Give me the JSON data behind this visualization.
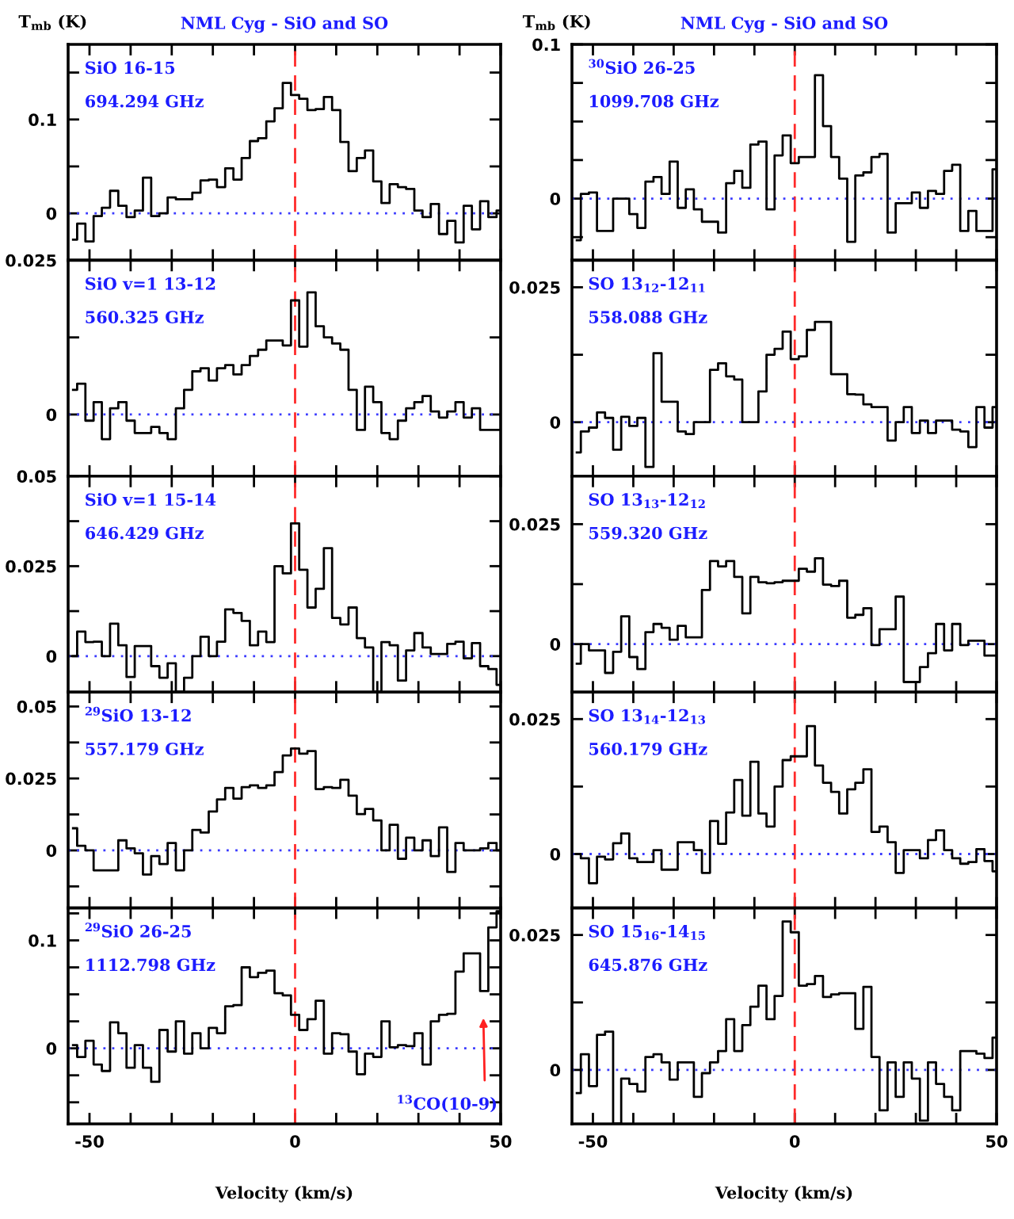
{
  "chart_data": [
    {
      "type": "step",
      "title": "NML Cyg - SiO and SO",
      "ylabel": "T$_{mb}$ (K)",
      "annotations": [
        "SiO 16-15",
        "694.294 GHz"
      ],
      "color": "#000000",
      "x": [
        -54,
        -52,
        -50,
        -48,
        -46,
        -44,
        -42,
        -40,
        -38,
        -36,
        -34,
        -32,
        -30,
        -28,
        -26,
        -24,
        -22,
        -20,
        -18,
        -16,
        -14,
        -12,
        -10,
        -8,
        -6,
        -4,
        -2,
        0,
        2,
        4,
        6,
        8,
        10,
        12,
        14,
        16,
        18,
        20,
        22,
        24,
        26,
        28,
        30,
        32,
        34,
        36,
        38,
        40,
        42,
        44,
        46,
        48,
        50
      ],
      "values": [
        -0.028,
        -0.011,
        -0.03,
        -0.003,
        0.006,
        0.024,
        0.008,
        -0.004,
        0.003,
        0.038,
        -0.003,
        0,
        0.017,
        0.015,
        0.015,
        0.022,
        0.035,
        0.036,
        0.028,
        0.048,
        0.036,
        0.059,
        0.077,
        0.08,
        0.098,
        0.112,
        0.139,
        0.126,
        0.122,
        0.11,
        0.111,
        0.124,
        0.11,
        0.076,
        0.045,
        0.059,
        0.067,
        0.034,
        0.011,
        0.031,
        0.028,
        0.026,
        0.003,
        -0.004,
        0.01,
        -0.022,
        -0.008,
        -0.031,
        0.008,
        -0.017,
        0.013,
        -0.004,
        0.003
      ],
      "xlim": [
        -55.2,
        50
      ],
      "xticks": [
        -50,
        {
          "value": -40,
          "label": null
        },
        {
          "value": -30,
          "label": null
        },
        {
          "value": -20,
          "label": null
        },
        {
          "value": -10,
          "label": null
        },
        0,
        {
          "value": 10,
          "label": null
        },
        {
          "value": 20,
          "label": null
        },
        {
          "value": 30,
          "label": null
        },
        {
          "value": 40,
          "label": null
        },
        50
      ],
      "ylim": [
        -0.05,
        0.18
      ],
      "yticks": [
        0,
        {
          "value": 0.05,
          "label": null
        },
        0.1,
        {
          "value": 0.15,
          "label": null
        }
      ],
      "ref_lines": [
        {
          "axis": "x",
          "value": 0,
          "color": "#ff2a2a",
          "line_style": "dashed"
        },
        {
          "axis": "y",
          "value": 0,
          "color": "#3a3aff",
          "line_style": "dotted"
        }
      ],
      "tick_labels": "y"
    },
    {
      "type": "step",
      "annotations": [
        "SiO v=1 13-12",
        "560.325 GHz"
      ],
      "color": "#000000",
      "x": [
        -54,
        -52,
        -50,
        -48,
        -46,
        -44,
        -42,
        -40,
        -38,
        -36,
        -34,
        -32,
        -30,
        -28,
        -26,
        -24,
        -22,
        -20,
        -18,
        -16,
        -14,
        -12,
        -10,
        -8,
        -6,
        -4,
        -2,
        0,
        2,
        4,
        6,
        8,
        10,
        12,
        14,
        16,
        18,
        20,
        22,
        24,
        26,
        28,
        30,
        32,
        34,
        36,
        38,
        40,
        42,
        44,
        46,
        48,
        50
      ],
      "values": [
        0.004,
        0.005,
        -0.001,
        0.002,
        -0.004,
        0.001,
        0.002,
        -0.001,
        -0.003,
        -0.003,
        -0.002,
        -0.003,
        -0.004,
        0.001,
        0.004,
        0.007,
        0.0075,
        0.0055,
        0.0075,
        0.008,
        0.0065,
        0.008,
        0.0095,
        0.0105,
        0.012,
        0.012,
        0.0112,
        0.0185,
        0.011,
        0.0198,
        0.0143,
        0.0125,
        0.0115,
        0.0105,
        0.004,
        -0.0025,
        0.0045,
        0.002,
        -0.003,
        -0.004,
        -0.001,
        0.001,
        0.002,
        0.003,
        0.0005,
        -0.0005,
        0.0005,
        0.002,
        -0.0005,
        0.001,
        -0.0025,
        -0.0025,
        -0.0025
      ],
      "xlim": [
        -55.2,
        50
      ],
      "xticks": [
        -50,
        {
          "value": -40,
          "label": null
        },
        {
          "value": -30,
          "label": null
        },
        {
          "value": -20,
          "label": null
        },
        {
          "value": -10,
          "label": null
        },
        0,
        {
          "value": 10,
          "label": null
        },
        {
          "value": 20,
          "label": null
        },
        {
          "value": 30,
          "label": null
        },
        {
          "value": 40,
          "label": null
        },
        50
      ],
      "ylim": [
        -0.01,
        0.025
      ],
      "yticks": [
        0,
        {
          "value": 0.0125,
          "label": null
        },
        0.025
      ],
      "ref_lines": [
        {
          "axis": "x",
          "value": 0,
          "color": "#ff2a2a",
          "line_style": "dashed"
        },
        {
          "axis": "y",
          "value": 0,
          "color": "#3a3aff",
          "line_style": "dotted"
        }
      ],
      "tick_labels": "y"
    },
    {
      "type": "step",
      "annotations": [
        "SiO v=1 15-14",
        "646.429 GHz"
      ],
      "color": "#000000",
      "x": [
        -54,
        -52,
        -50,
        -48,
        -46,
        -44,
        -42,
        -40,
        -38,
        -36,
        -34,
        -32,
        -30,
        -28,
        -26,
        -24,
        -22,
        -20,
        -18,
        -16,
        -14,
        -12,
        -10,
        -8,
        -6,
        -4,
        -2,
        0,
        2,
        4,
        6,
        8,
        10,
        12,
        14,
        16,
        18,
        20,
        22,
        24,
        26,
        28,
        30,
        32,
        34,
        36,
        38,
        40,
        42,
        44,
        46,
        48,
        50
      ],
      "values": [
        0,
        0.0068,
        0.0039,
        0.004,
        0,
        0.009,
        0.003,
        -0.0058,
        0.0028,
        0.0028,
        -0.0028,
        -0.006,
        -0.002,
        -0.0099,
        -0.006,
        0,
        0.0054,
        0,
        0.004,
        0.013,
        0.012,
        0.0098,
        0.003,
        0.0068,
        0.0039,
        0.025,
        0.023,
        0.0369,
        0.024,
        0.0135,
        0.0187,
        0.03,
        0.0106,
        0.0088,
        0.0135,
        0.005,
        0.0024,
        -0.0099,
        0.0039,
        0.003,
        -0.0068,
        0.0016,
        0.0064,
        0.0024,
        0.0006,
        0.0006,
        0.0034,
        0.004,
        -0.0006,
        0.0036,
        -0.0028,
        -0.0036,
        -0.008
      ],
      "xlim": [
        -55.2,
        50
      ],
      "xticks": [
        -50,
        {
          "value": -40,
          "label": null
        },
        {
          "value": -30,
          "label": null
        },
        {
          "value": -20,
          "label": null
        },
        {
          "value": -10,
          "label": null
        },
        0,
        {
          "value": 10,
          "label": null
        },
        {
          "value": 20,
          "label": null
        },
        {
          "value": 30,
          "label": null
        },
        {
          "value": 40,
          "label": null
        },
        50
      ],
      "ylim": [
        -0.01,
        0.05
      ],
      "yticks": [
        0,
        {
          "value": 0.0125,
          "label": null
        },
        0.025,
        {
          "value": 0.0375,
          "label": null
        },
        0.05
      ],
      "ref_lines": [
        {
          "axis": "x",
          "value": 0,
          "color": "#ff2a2a",
          "line_style": "dashed"
        },
        {
          "axis": "y",
          "value": 0,
          "color": "#3a3aff",
          "line_style": "dotted"
        }
      ],
      "tick_labels": "y"
    },
    {
      "type": "step",
      "annotations": [
        "$^{29}$SiO 13-12",
        "557.179 GHz"
      ],
      "color": "#000000",
      "x": [
        -54,
        -52,
        -50,
        -48,
        -46,
        -44,
        -42,
        -40,
        -38,
        -36,
        -34,
        -32,
        -30,
        -28,
        -26,
        -24,
        -22,
        -20,
        -18,
        -16,
        -14,
        -12,
        -10,
        -8,
        -6,
        -4,
        -2,
        0,
        2,
        4,
        6,
        8,
        10,
        12,
        14,
        16,
        18,
        20,
        22,
        24,
        26,
        28,
        30,
        32,
        34,
        36,
        38,
        40,
        42,
        44,
        46,
        48,
        50
      ],
      "values": [
        0.0077,
        0.0016,
        0,
        -0.0069,
        -0.0069,
        -0.0069,
        0.0035,
        0.0007,
        -0.001,
        -0.0084,
        -0.002,
        -0.0047,
        0.0026,
        -0.0069,
        0,
        0.0071,
        0.0062,
        0.0135,
        0.0177,
        0.0217,
        0.018,
        0.022,
        0.0226,
        0.0217,
        0.0226,
        0.0272,
        0.033,
        0.0354,
        0.0336,
        0.0345,
        0.0213,
        0.022,
        0.0217,
        0.0245,
        0.019,
        0.0126,
        0.0144,
        0.0104,
        0,
        0.0089,
        -0.0029,
        0.0044,
        0,
        0.0035,
        -0.002,
        0.008,
        -0.0075,
        0.0026,
        0,
        0,
        0.0007,
        0.0026,
        0
      ],
      "xlim": [
        -55.2,
        50
      ],
      "xticks": [
        -50,
        {
          "value": -40,
          "label": null
        },
        {
          "value": -30,
          "label": null
        },
        {
          "value": -20,
          "label": null
        },
        {
          "value": -10,
          "label": null
        },
        0,
        {
          "value": 10,
          "label": null
        },
        {
          "value": 20,
          "label": null
        },
        {
          "value": 30,
          "label": null
        },
        {
          "value": 40,
          "label": null
        },
        50
      ],
      "ylim": [
        -0.02,
        0.055
      ],
      "yticks": [
        {
          "value": -0.0125,
          "label": null
        },
        0,
        {
          "value": 0.0125,
          "label": null
        },
        0.025,
        {
          "value": 0.0375,
          "label": null
        },
        0.05
      ],
      "ref_lines": [
        {
          "axis": "x",
          "value": 0,
          "color": "#ff2a2a",
          "line_style": "dashed"
        },
        {
          "axis": "y",
          "value": 0,
          "color": "#3a3aff",
          "line_style": "dotted"
        }
      ],
      "tick_labels": "y"
    },
    {
      "type": "step",
      "xlabel": "Velocity (km/s)",
      "annotations": [
        "$^{29}$SiO 26-25",
        "1112.798 GHz",
        "$^{13}$CO(10-9)"
      ],
      "color": "#000000",
      "x": [
        -54,
        -52,
        -50,
        -48,
        -46,
        -44,
        -42,
        -40,
        -38,
        -36,
        -34,
        -32,
        -30,
        -28,
        -26,
        -24,
        -22,
        -20,
        -18,
        -16,
        -14,
        -12,
        -10,
        -8,
        -6,
        -4,
        -2,
        0,
        2,
        4,
        6,
        8,
        10,
        12,
        14,
        16,
        18,
        20,
        22,
        24,
        26,
        28,
        30,
        32,
        34,
        36,
        38,
        40,
        42,
        44,
        46,
        48,
        50
      ],
      "values": [
        0.003,
        -0.008,
        0.007,
        -0.015,
        -0.021,
        0.024,
        0.014,
        -0.018,
        0.003,
        -0.018,
        -0.031,
        0.017,
        -0.003,
        0.025,
        -0.005,
        0.014,
        0,
        0.019,
        0.014,
        0.039,
        0.04,
        0.075,
        0.066,
        0.07,
        0.072,
        0.051,
        0.049,
        0.031,
        0.017,
        0.027,
        0.044,
        -0.005,
        0.014,
        0.013,
        -0.003,
        -0.024,
        -0.005,
        -0.008,
        0.025,
        0.001,
        0.003,
        0.002,
        0.014,
        -0.015,
        0.025,
        0.031,
        0.032,
        0.071,
        0.088,
        0.088,
        0.053,
        0.112,
        0.127
      ],
      "xlim": [
        -55.2,
        50
      ],
      "xticks": [
        -50,
        {
          "value": -40,
          "label": null
        },
        {
          "value": -30,
          "label": null
        },
        {
          "value": -20,
          "label": null
        },
        {
          "value": -10,
          "label": null
        },
        0,
        {
          "value": 10,
          "label": null
        },
        {
          "value": 20,
          "label": null
        },
        {
          "value": 30,
          "label": null
        },
        {
          "value": 40,
          "label": null
        },
        50
      ],
      "ylim": [
        -0.07,
        0.13
      ],
      "yticks": [
        {
          "value": -0.05,
          "label": null
        },
        {
          "value": -0.025,
          "label": null
        },
        0,
        {
          "value": 0.025,
          "label": null
        },
        {
          "value": 0.05,
          "label": null
        },
        {
          "value": 0.075,
          "label": null
        },
        0.1,
        {
          "value": 0.125,
          "label": null
        }
      ],
      "ref_lines": [
        {
          "axis": "x",
          "value": 0,
          "color": "#ff2a2a",
          "line_style": "dashed"
        },
        {
          "axis": "y",
          "value": 0,
          "color": "#3a3aff",
          "line_style": "dotted"
        }
      ]
    },
    {
      "type": "step",
      "title": "NML Cyg - SiO and SO",
      "ylabel": "T$_{mb}$ (K)",
      "annotations": [
        "$^{30}$SiO 26-25",
        "1099.708 GHz"
      ],
      "color": "#000000",
      "x": [
        -54,
        -52,
        -50,
        -48,
        -46,
        -44,
        -42,
        -40,
        -38,
        -36,
        -34,
        -32,
        -30,
        -28,
        -26,
        -24,
        -22,
        -20,
        -18,
        -16,
        -14,
        -12,
        -10,
        -8,
        -6,
        -4,
        -2,
        0,
        2,
        4,
        6,
        8,
        10,
        12,
        14,
        16,
        18,
        20,
        22,
        24,
        26,
        28,
        30,
        32,
        34,
        36,
        38,
        40,
        42,
        44,
        46,
        48,
        50
      ],
      "values": [
        -0.027,
        0.003,
        0.004,
        -0.021,
        -0.021,
        0,
        0,
        -0.01,
        -0.019,
        0.011,
        0.014,
        0.003,
        0.024,
        -0.006,
        0.006,
        -0.007,
        -0.015,
        -0.015,
        -0.022,
        0.01,
        0.018,
        0.007,
        0.035,
        0.037,
        -0.007,
        0.028,
        0.041,
        0.023,
        0.027,
        0.027,
        0.08,
        0.047,
        0.027,
        0.013,
        -0.028,
        0.015,
        0.017,
        0.027,
        0.029,
        -0.022,
        -0.003,
        -0.003,
        0.004,
        -0.006,
        0.005,
        0.003,
        0.018,
        0.022,
        -0.021,
        -0.008,
        -0.021,
        -0.021,
        0.019
      ],
      "xlim": [
        -55.2,
        50
      ],
      "xticks": [
        -50,
        {
          "value": -40,
          "label": null
        },
        {
          "value": -30,
          "label": null
        },
        {
          "value": -20,
          "label": null
        },
        {
          "value": -10,
          "label": null
        },
        0,
        {
          "value": 10,
          "label": null
        },
        {
          "value": 20,
          "label": null
        },
        {
          "value": 30,
          "label": null
        },
        {
          "value": 40,
          "label": null
        },
        50
      ],
      "ylim": [
        -0.04,
        0.1
      ],
      "yticks": [
        {
          "value": -0.025,
          "label": null
        },
        0,
        {
          "value": 0.025,
          "label": null
        },
        {
          "value": 0.05,
          "label": null
        },
        {
          "value": 0.075,
          "label": null
        },
        0.1
      ],
      "ref_lines": [
        {
          "axis": "x",
          "value": 0,
          "color": "#ff2a2a",
          "line_style": "dashed"
        },
        {
          "axis": "y",
          "value": 0,
          "color": "#3a3aff",
          "line_style": "dotted"
        }
      ],
      "tick_labels": "y"
    },
    {
      "type": "step",
      "annotations": [
        "SO 13$_{12}$-12$_{11}$",
        "558.088 GHz"
      ],
      "color": "#000000",
      "x": [
        -54,
        -52,
        -50,
        -48,
        -46,
        -44,
        -42,
        -40,
        -38,
        -36,
        -34,
        -32,
        -30,
        -28,
        -26,
        -24,
        -22,
        -20,
        -18,
        -16,
        -14,
        -12,
        -10,
        -8,
        -6,
        -4,
        -2,
        0,
        2,
        4,
        6,
        8,
        10,
        12,
        14,
        16,
        18,
        20,
        22,
        24,
        26,
        28,
        30,
        32,
        34,
        36,
        38,
        40,
        42,
        44,
        46,
        48,
        50
      ],
      "values": [
        -0.0056,
        -0.0017,
        -0.001,
        0.0018,
        0.0008,
        -0.0051,
        0.001,
        -0.0007,
        0.0008,
        -0.0083,
        0.0128,
        0.0038,
        0.0038,
        -0.0017,
        -0.0022,
        0,
        0,
        0.0097,
        0.0109,
        0.0085,
        0.0079,
        0,
        0,
        0.0057,
        0.0125,
        0.0136,
        0.0168,
        0.0117,
        0.0122,
        0.0171,
        0.0186,
        0.0186,
        0.0089,
        0.0089,
        0.0052,
        0.0051,
        0.0033,
        0.0028,
        0.0028,
        -0.0034,
        0,
        0.0028,
        -0.002,
        0.0003,
        -0.002,
        0.0003,
        0.0003,
        -0.0014,
        -0.0017,
        -0.0046,
        0.0028,
        -0.001,
        0.0028
      ],
      "xlim": [
        -55.2,
        50
      ],
      "xticks": [
        -50,
        {
          "value": -40,
          "label": null
        },
        {
          "value": -30,
          "label": null
        },
        {
          "value": -20,
          "label": null
        },
        {
          "value": -10,
          "label": null
        },
        0,
        {
          "value": 10,
          "label": null
        },
        {
          "value": 20,
          "label": null
        },
        {
          "value": 30,
          "label": null
        },
        {
          "value": 40,
          "label": null
        },
        50
      ],
      "ylim": [
        -0.01,
        0.03
      ],
      "yticks": [
        0,
        {
          "value": 0.0125,
          "label": null
        },
        0.025
      ],
      "ref_lines": [
        {
          "axis": "x",
          "value": 0,
          "color": "#ff2a2a",
          "line_style": "dashed"
        },
        {
          "axis": "y",
          "value": 0,
          "color": "#3a3aff",
          "line_style": "dotted"
        }
      ],
      "tick_labels": "y"
    },
    {
      "type": "step",
      "annotations": [
        "SO 13$_{13}$-12$_{12}$",
        "559.320 GHz"
      ],
      "color": "#000000",
      "x": [
        -54,
        -52,
        -50,
        -48,
        -46,
        -44,
        -42,
        -40,
        -38,
        -36,
        -34,
        -32,
        -30,
        -28,
        -26,
        -24,
        -22,
        -20,
        -18,
        -16,
        -14,
        -12,
        -10,
        -8,
        -6,
        -4,
        -2,
        0,
        2,
        4,
        6,
        8,
        10,
        12,
        14,
        16,
        18,
        20,
        22,
        24,
        26,
        28,
        30,
        32,
        34,
        36,
        38,
        40,
        42,
        44,
        46,
        48,
        50
      ],
      "values": [
        -0.0041,
        0,
        -0.0013,
        -0.0013,
        -0.006,
        -0.0016,
        0.0058,
        -0.0027,
        -0.0052,
        0.0025,
        0.0042,
        0.0034,
        0.0009,
        0.0038,
        0.0014,
        0.0014,
        0.0113,
        0.0173,
        0.0162,
        0.0173,
        0.014,
        0.0064,
        0.014,
        0.0129,
        0.0127,
        0.0129,
        0.0132,
        0.0132,
        0.0157,
        0.0151,
        0.0179,
        0.0124,
        0.0121,
        0.0132,
        0.0055,
        0.0061,
        0.0075,
        -0.0002,
        0.0031,
        0.0031,
        0.0099,
        -0.0079,
        -0.0079,
        -0.0048,
        -0.0019,
        0.0042,
        -0.0013,
        0.0042,
        -0.0002,
        0.0007,
        0.0007,
        -0.0024,
        -0.0024
      ],
      "xlim": [
        -55.2,
        50
      ],
      "xticks": [
        -50,
        {
          "value": -40,
          "label": null
        },
        {
          "value": -30,
          "label": null
        },
        {
          "value": -20,
          "label": null
        },
        {
          "value": -10,
          "label": null
        },
        0,
        {
          "value": 10,
          "label": null
        },
        {
          "value": 20,
          "label": null
        },
        {
          "value": 30,
          "label": null
        },
        {
          "value": 40,
          "label": null
        },
        50
      ],
      "ylim": [
        -0.01,
        0.035
      ],
      "yticks": [
        0,
        {
          "value": 0.0125,
          "label": null
        },
        0.025
      ],
      "ref_lines": [
        {
          "axis": "x",
          "value": 0,
          "color": "#ff2a2a",
          "line_style": "dashed"
        },
        {
          "axis": "y",
          "value": 0,
          "color": "#3a3aff",
          "line_style": "dotted"
        }
      ],
      "tick_labels": "y"
    },
    {
      "type": "step",
      "annotations": [
        "SO 13$_{14}$-12$_{13}$",
        "560.179 GHz"
      ],
      "color": "#000000",
      "x": [
        -54,
        -52,
        -50,
        -48,
        -46,
        -44,
        -42,
        -40,
        -38,
        -36,
        -34,
        -32,
        -30,
        -28,
        -26,
        -24,
        -22,
        -20,
        -18,
        -16,
        -14,
        -12,
        -10,
        -8,
        -6,
        -4,
        -2,
        0,
        2,
        4,
        6,
        8,
        10,
        12,
        14,
        16,
        18,
        20,
        22,
        24,
        26,
        28,
        30,
        32,
        34,
        36,
        38,
        40,
        42,
        44,
        46,
        48,
        50
      ],
      "values": [
        0,
        -0.0008,
        -0.0054,
        -0.0005,
        -0.001,
        0.002,
        0.0038,
        -0.0008,
        -0.0015,
        -0.0015,
        0.0007,
        -0.0029,
        -0.0029,
        0.0022,
        0.0022,
        0.0007,
        -0.0035,
        0.0061,
        0.0019,
        0.0077,
        0.0137,
        0.0071,
        0.0171,
        0.0075,
        0.0051,
        0.0125,
        0.0174,
        0.0181,
        0.0181,
        0.0237,
        0.0164,
        0.0132,
        0.0115,
        0.0075,
        0.012,
        0.0132,
        0.0157,
        0.0041,
        0.0051,
        0.0022,
        -0.0035,
        0.0007,
        0.0007,
        -0.0008,
        0.0026,
        0.0044,
        0.0007,
        -0.0008,
        -0.0018,
        -0.0015,
        0.0009,
        -0.0013,
        -0.0032
      ],
      "xlim": [
        -55.2,
        50
      ],
      "xticks": [
        -50,
        {
          "value": -40,
          "label": null
        },
        {
          "value": -30,
          "label": null
        },
        {
          "value": -20,
          "label": null
        },
        {
          "value": -10,
          "label": null
        },
        0,
        {
          "value": 10,
          "label": null
        },
        {
          "value": 20,
          "label": null
        },
        {
          "value": 30,
          "label": null
        },
        {
          "value": 40,
          "label": null
        },
        50
      ],
      "ylim": [
        -0.01,
        0.03
      ],
      "yticks": [
        0,
        {
          "value": 0.0125,
          "label": null
        },
        0.025
      ],
      "ref_lines": [
        {
          "axis": "x",
          "value": 0,
          "color": "#ff2a2a",
          "line_style": "dashed"
        },
        {
          "axis": "y",
          "value": 0,
          "color": "#3a3aff",
          "line_style": "dotted"
        }
      ],
      "tick_labels": "y"
    },
    {
      "type": "step",
      "xlabel": "Velocity (km/s)",
      "annotations": [
        "SO 15$_{16}$-14$_{15}$",
        "645.876 GHz"
      ],
      "color": "#000000",
      "x": [
        -54,
        -52,
        -50,
        -48,
        -46,
        -44,
        -42,
        -40,
        -38,
        -36,
        -34,
        -32,
        -30,
        -28,
        -26,
        -24,
        -22,
        -20,
        -18,
        -16,
        -14,
        -12,
        -10,
        -8,
        -6,
        -4,
        -2,
        0,
        2,
        4,
        6,
        8,
        10,
        12,
        14,
        16,
        18,
        20,
        22,
        24,
        26,
        28,
        30,
        32,
        34,
        36,
        38,
        40,
        42,
        44,
        46,
        48,
        50
      ],
      "values": [
        -0.0043,
        0.0029,
        -0.003,
        0.0065,
        0.0071,
        -0.0099,
        -0.0016,
        -0.0026,
        -0.004,
        0.0024,
        0.0029,
        0.0014,
        -0.0018,
        0.0014,
        0.0014,
        -0.005,
        -0.0006,
        0.0014,
        0.0035,
        0.0094,
        0.0035,
        0.0083,
        0.0117,
        0.0156,
        0.0094,
        0.0137,
        0.0275,
        0.0255,
        0.0156,
        0.0159,
        0.0174,
        0.0135,
        0.014,
        0.0142,
        0.0142,
        0.0076,
        0.0154,
        0.0024,
        -0.0075,
        0.0014,
        -0.005,
        0.0014,
        -0.0016,
        -0.0094,
        0.0014,
        -0.0026,
        -0.005,
        -0.0075,
        0.0035,
        0.0035,
        0.003,
        0.0022,
        0.006
      ],
      "xlim": [
        -55.2,
        50
      ],
      "xticks": [
        -50,
        {
          "value": -40,
          "label": null
        },
        {
          "value": -30,
          "label": null
        },
        {
          "value": -20,
          "label": null
        },
        {
          "value": -10,
          "label": null
        },
        0,
        {
          "value": 10,
          "label": null
        },
        {
          "value": 20,
          "label": null
        },
        {
          "value": 30,
          "label": null
        },
        {
          "value": 40,
          "label": null
        },
        50
      ],
      "ylim": [
        -0.01,
        0.03
      ],
      "yticks": [
        0,
        {
          "value": 0.0125,
          "label": null
        },
        0.025
      ],
      "ref_lines": [
        {
          "axis": "x",
          "value": 0,
          "color": "#ff2a2a",
          "line_style": "dashed"
        },
        {
          "axis": "y",
          "value": 0,
          "color": "#3a3aff",
          "line_style": "dotted"
        }
      ]
    }
  ]
}
